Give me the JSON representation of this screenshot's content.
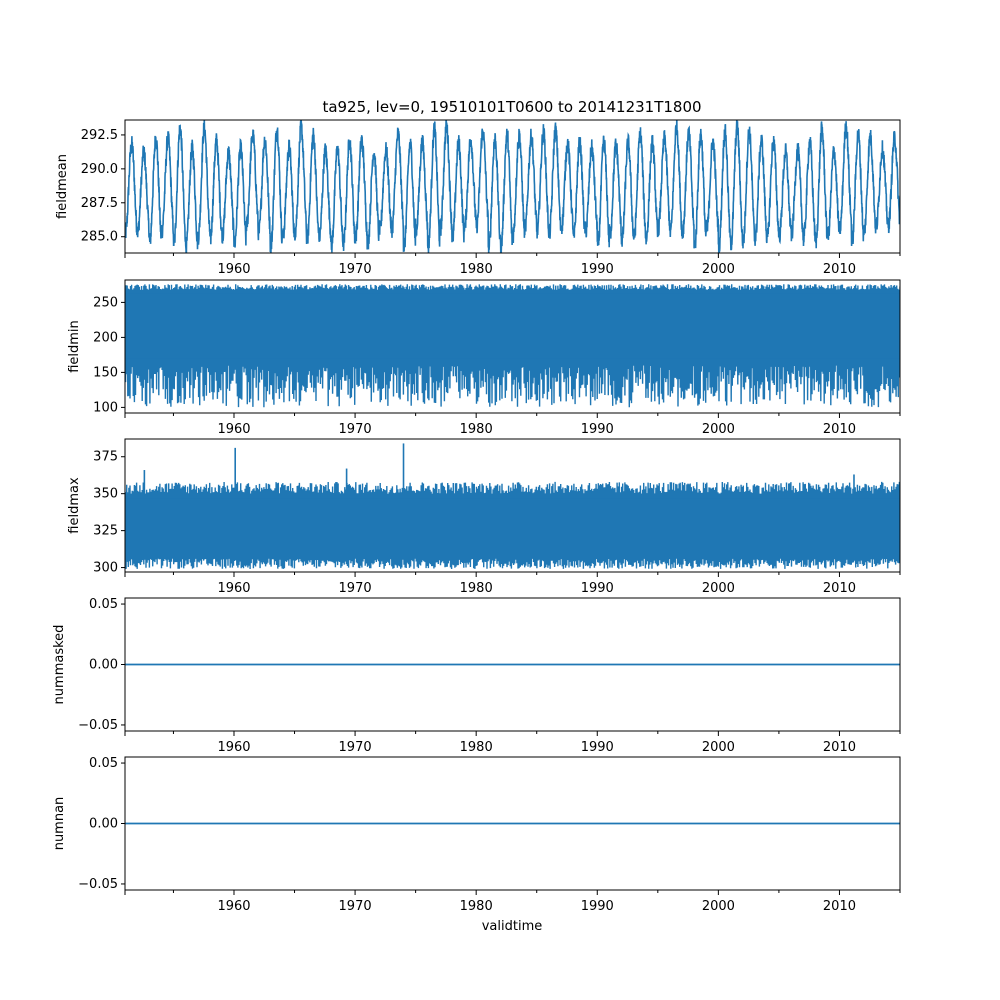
{
  "figure": {
    "title": "ta925, lev=0, 19510101T0600 to 20141231T1800",
    "xlabel": "validtime",
    "series_color": "#1f77b4"
  },
  "chart_data": [
    {
      "type": "line",
      "ylabel": "fieldmean",
      "xlim": [
        1951.0,
        2015.0
      ],
      "ylim": [
        283.8,
        293.6
      ],
      "x_ticks": [
        1960,
        1970,
        1980,
        1990,
        2000,
        2010
      ],
      "y_ticks": [
        285.0,
        287.5,
        290.0,
        292.5
      ],
      "y_tick_labels": [
        "285.0",
        "287.5",
        "290.0",
        "292.5"
      ],
      "annual_cycle": {
        "low_min": 284.2,
        "low_max": 285.9,
        "high_min": 291.2,
        "high_max": 293.2
      }
    },
    {
      "type": "line",
      "ylabel": "fieldmin",
      "xlim": [
        1951.0,
        2015.0
      ],
      "ylim": [
        92,
        282
      ],
      "x_ticks": [
        1960,
        1970,
        1980,
        1990,
        2000,
        2010
      ],
      "y_ticks": [
        100,
        150,
        200,
        250
      ],
      "y_tick_labels": [
        "100",
        "150",
        "200",
        "250"
      ],
      "band": {
        "top_low": 268,
        "top_high": 276,
        "floor_low": 100,
        "floor_high": 125,
        "dense_bottom": 150
      }
    },
    {
      "type": "line",
      "ylabel": "fieldmax",
      "xlim": [
        1951.0,
        2015.0
      ],
      "ylim": [
        297,
        387
      ],
      "x_ticks": [
        1960,
        1970,
        1980,
        1990,
        2000,
        2010
      ],
      "y_ticks": [
        300,
        325,
        350,
        375
      ],
      "y_tick_labels": [
        "300",
        "325",
        "350",
        "375"
      ],
      "band": {
        "bottom_low": 299,
        "bottom_high": 306,
        "top_low": 350,
        "top_high": 358
      },
      "spikes": [
        [
          1952.6,
          366
        ],
        [
          1960.1,
          381
        ],
        [
          1969.3,
          367
        ],
        [
          1974.0,
          384
        ],
        [
          2011.2,
          363
        ]
      ]
    },
    {
      "type": "line",
      "ylabel": "nummasked",
      "xlim": [
        1951.0,
        2015.0
      ],
      "ylim": [
        -0.055,
        0.055
      ],
      "x_ticks": [
        1960,
        1970,
        1980,
        1990,
        2000,
        2010
      ],
      "y_ticks": [
        -0.05,
        0.0,
        0.05
      ],
      "y_tick_labels": [
        "−0.05",
        "0.00",
        "0.05"
      ],
      "value": 0.0
    },
    {
      "type": "line",
      "ylabel": "numnan",
      "xlim": [
        1951.0,
        2015.0
      ],
      "ylim": [
        -0.055,
        0.055
      ],
      "x_ticks": [
        1960,
        1970,
        1980,
        1990,
        2000,
        2010
      ],
      "y_ticks": [
        -0.05,
        0.0,
        0.05
      ],
      "y_tick_labels": [
        "−0.05",
        "0.00",
        "0.05"
      ],
      "value": 0.0
    }
  ]
}
